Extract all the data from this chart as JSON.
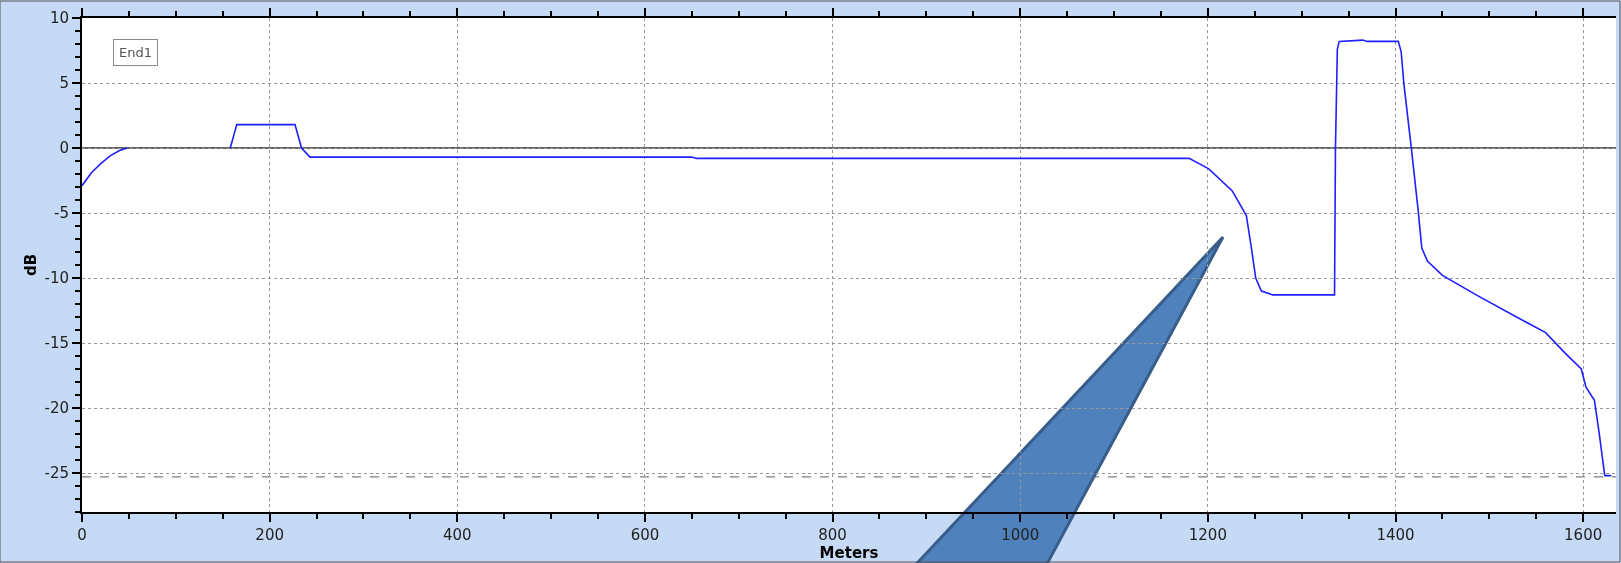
{
  "chart_data": {
    "type": "line",
    "xlabel": "Meters",
    "ylabel": "dB",
    "annotations": [
      "End1"
    ],
    "x": [
      0,
      10,
      20,
      30,
      40,
      48,
      100,
      158,
      165,
      227,
      234,
      243,
      650,
      655,
      1180,
      1201,
      1226,
      1241,
      1246,
      1251,
      1257,
      1269,
      1335,
      1336,
      1338,
      1340,
      1365,
      1370,
      1403,
      1406,
      1409,
      1417,
      1424,
      1428,
      1434,
      1450,
      1486,
      1529,
      1560,
      1581,
      1598,
      1603,
      1612,
      1617,
      1623,
      1630
    ],
    "series": [
      {
        "color": "#1f1fff",
        "values": [
          -2.9,
          -1.9,
          -1.2,
          -0.6,
          -0.2,
          0,
          null,
          0,
          1.8,
          1.8,
          0,
          -0.7,
          -0.7,
          -0.8,
          -0.8,
          -1.6,
          -3.3,
          -5.2,
          -7.5,
          -10.0,
          -11.0,
          -11.3,
          -11.3,
          0,
          7.6,
          8.2,
          8.3,
          8.2,
          8.2,
          7.4,
          4.9,
          -0.1,
          -4.7,
          -7.7,
          -8.7,
          -9.8,
          -11.3,
          -13.0,
          -14.2,
          -15.8,
          -17.0,
          -18.4,
          -19.4,
          -21.9,
          -25.2,
          -25.2
        ]
      }
    ],
    "xlim": [
      0,
      1635
    ],
    "ylim": [
      -28,
      10
    ],
    "xticks": [
      0,
      200,
      400,
      600,
      800,
      1000,
      1200,
      1400,
      1600
    ],
    "yticks": [
      -25,
      -20,
      -15,
      -10,
      -5,
      0,
      5,
      10
    ],
    "grid": true,
    "line_style": "solid",
    "marker": "none",
    "ref_lines": [
      {
        "axis": "y",
        "value": 0,
        "color": "#333333",
        "line_style": "solid"
      },
      {
        "axis": "y",
        "value": -25.3,
        "color": "#808080",
        "line_style": "dashed"
      }
    ]
  }
}
